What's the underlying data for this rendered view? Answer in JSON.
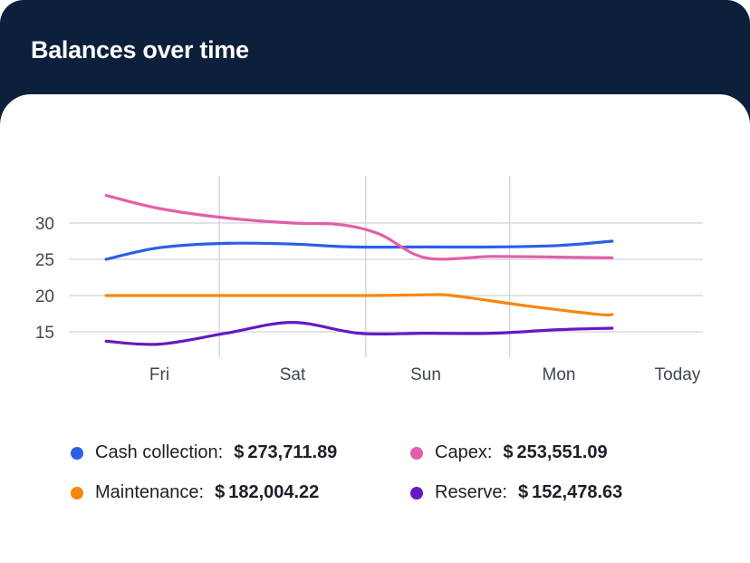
{
  "header": {
    "title": "Balances over time"
  },
  "chart_data": {
    "type": "line",
    "title": "Balances over time",
    "categories": [
      "Fri",
      "Sat",
      "Sun",
      "Mon",
      "Today"
    ],
    "y_ticks": [
      15,
      20,
      25,
      30
    ],
    "ylim": [
      11.5,
      36.5
    ],
    "grid": true,
    "series": [
      {
        "name": "Cash collection",
        "color": "#2c5ee8",
        "points": [
          [
            -0.4,
            25.0
          ],
          [
            0.0,
            26.6
          ],
          [
            0.5,
            27.2
          ],
          [
            1.0,
            27.1
          ],
          [
            1.45,
            26.7
          ],
          [
            2.0,
            26.7
          ],
          [
            2.5,
            26.7
          ],
          [
            3.0,
            26.9
          ],
          [
            3.4,
            27.5
          ]
        ]
      },
      {
        "name": "Capex",
        "color": "#e25fa8",
        "points": [
          [
            -0.4,
            33.8
          ],
          [
            0.0,
            32.0
          ],
          [
            0.5,
            30.7
          ],
          [
            1.0,
            30.0
          ],
          [
            1.35,
            29.8
          ],
          [
            1.65,
            28.5
          ],
          [
            2.0,
            25.2
          ],
          [
            2.5,
            25.4
          ],
          [
            3.0,
            25.3
          ],
          [
            3.4,
            25.2
          ]
        ]
      },
      {
        "name": "Maintenance",
        "color": "#f5870a",
        "points": [
          [
            -0.4,
            20.0
          ],
          [
            0.5,
            20.0
          ],
          [
            1.5,
            20.0
          ],
          [
            2.0,
            20.1
          ],
          [
            2.2,
            20.0
          ],
          [
            2.75,
            18.6
          ],
          [
            3.3,
            17.4
          ],
          [
            3.4,
            17.4
          ]
        ]
      },
      {
        "name": "Reserve",
        "color": "#6419c2",
        "points": [
          [
            -0.4,
            13.7
          ],
          [
            0.0,
            13.3
          ],
          [
            0.5,
            14.8
          ],
          [
            1.0,
            16.3
          ],
          [
            1.5,
            14.8
          ],
          [
            2.0,
            14.8
          ],
          [
            2.5,
            14.8
          ],
          [
            3.0,
            15.3
          ],
          [
            3.4,
            15.5
          ]
        ]
      }
    ]
  },
  "legend": [
    {
      "name": "Cash collection:",
      "value": "$ 273,711.89",
      "color": "#2c5ee8"
    },
    {
      "name": "Capex:",
      "value": "$ 253,551.09",
      "color": "#e25fa8"
    },
    {
      "name": "Maintenance:",
      "value": "$ 182,004.22",
      "color": "#f5870a"
    },
    {
      "name": "Reserve:",
      "value": "$ 152,478.63",
      "color": "#6419c2"
    }
  ]
}
